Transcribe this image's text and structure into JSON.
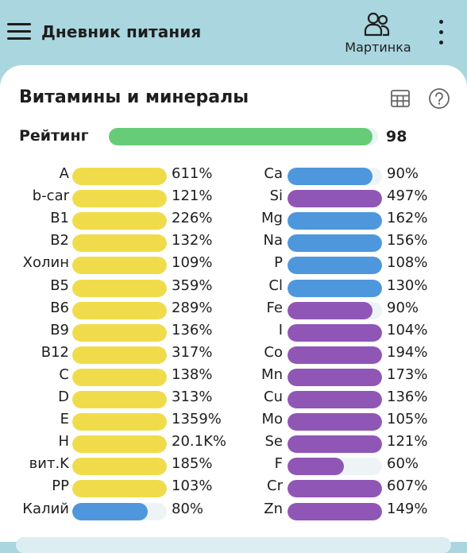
{
  "header": {
    "title": "Дневник питания",
    "user_label": "Мартинка",
    "menu_icon": "hamburger-icon",
    "user_icon": "users-icon",
    "more_icon": "kebab-icon"
  },
  "card": {
    "title": "Витамины и минералы",
    "table_icon": "table-icon",
    "help_icon": "help-icon"
  },
  "rating": {
    "label": "Рейтинг",
    "value": "98",
    "fraction": 0.98,
    "color": "#66cc77"
  },
  "colors": {
    "vitamin": "#f0dc4a",
    "mineral_blue": "#4f97dc",
    "mineral_purple": "#9056b5",
    "track": "#eef4f6",
    "header_bg": "#aad6df"
  },
  "left_column": [
    {
      "name": "A",
      "pct": "611%",
      "fill": 1.0,
      "color": "vitamin"
    },
    {
      "name": "b-car",
      "pct": "121%",
      "fill": 1.0,
      "color": "vitamin"
    },
    {
      "name": "B1",
      "pct": "226%",
      "fill": 1.0,
      "color": "vitamin"
    },
    {
      "name": "B2",
      "pct": "132%",
      "fill": 1.0,
      "color": "vitamin"
    },
    {
      "name": "Холин",
      "pct": "109%",
      "fill": 1.0,
      "color": "vitamin"
    },
    {
      "name": "B5",
      "pct": "359%",
      "fill": 1.0,
      "color": "vitamin"
    },
    {
      "name": "B6",
      "pct": "289%",
      "fill": 1.0,
      "color": "vitamin"
    },
    {
      "name": "B9",
      "pct": "136%",
      "fill": 1.0,
      "color": "vitamin"
    },
    {
      "name": "B12",
      "pct": "317%",
      "fill": 1.0,
      "color": "vitamin"
    },
    {
      "name": "C",
      "pct": "138%",
      "fill": 1.0,
      "color": "vitamin"
    },
    {
      "name": "D",
      "pct": "313%",
      "fill": 1.0,
      "color": "vitamin"
    },
    {
      "name": "E",
      "pct": "1359%",
      "fill": 1.0,
      "color": "vitamin"
    },
    {
      "name": "H",
      "pct": "20.1K%",
      "fill": 1.0,
      "color": "vitamin"
    },
    {
      "name": "вит.K",
      "pct": "185%",
      "fill": 1.0,
      "color": "vitamin"
    },
    {
      "name": "PP",
      "pct": "103%",
      "fill": 1.0,
      "color": "vitamin"
    },
    {
      "name": "Калий",
      "pct": "80%",
      "fill": 0.8,
      "color": "mineral_blue"
    }
  ],
  "right_column": [
    {
      "name": "Ca",
      "pct": "90%",
      "fill": 0.9,
      "color": "mineral_blue"
    },
    {
      "name": "Si",
      "pct": "497%",
      "fill": 1.0,
      "color": "mineral_purple"
    },
    {
      "name": "Mg",
      "pct": "162%",
      "fill": 1.0,
      "color": "mineral_blue"
    },
    {
      "name": "Na",
      "pct": "156%",
      "fill": 1.0,
      "color": "mineral_blue"
    },
    {
      "name": "P",
      "pct": "108%",
      "fill": 1.0,
      "color": "mineral_blue"
    },
    {
      "name": "Cl",
      "pct": "130%",
      "fill": 1.0,
      "color": "mineral_blue"
    },
    {
      "name": "Fe",
      "pct": "90%",
      "fill": 0.9,
      "color": "mineral_purple"
    },
    {
      "name": "I",
      "pct": "104%",
      "fill": 1.0,
      "color": "mineral_purple"
    },
    {
      "name": "Co",
      "pct": "194%",
      "fill": 1.0,
      "color": "mineral_purple"
    },
    {
      "name": "Mn",
      "pct": "173%",
      "fill": 1.0,
      "color": "mineral_purple"
    },
    {
      "name": "Cu",
      "pct": "136%",
      "fill": 1.0,
      "color": "mineral_purple"
    },
    {
      "name": "Mo",
      "pct": "105%",
      "fill": 1.0,
      "color": "mineral_purple"
    },
    {
      "name": "Se",
      "pct": "121%",
      "fill": 1.0,
      "color": "mineral_purple"
    },
    {
      "name": "F",
      "pct": "60%",
      "fill": 0.6,
      "color": "mineral_purple"
    },
    {
      "name": "Cr",
      "pct": "607%",
      "fill": 1.0,
      "color": "mineral_purple"
    },
    {
      "name": "Zn",
      "pct": "149%",
      "fill": 1.0,
      "color": "mineral_purple"
    }
  ]
}
